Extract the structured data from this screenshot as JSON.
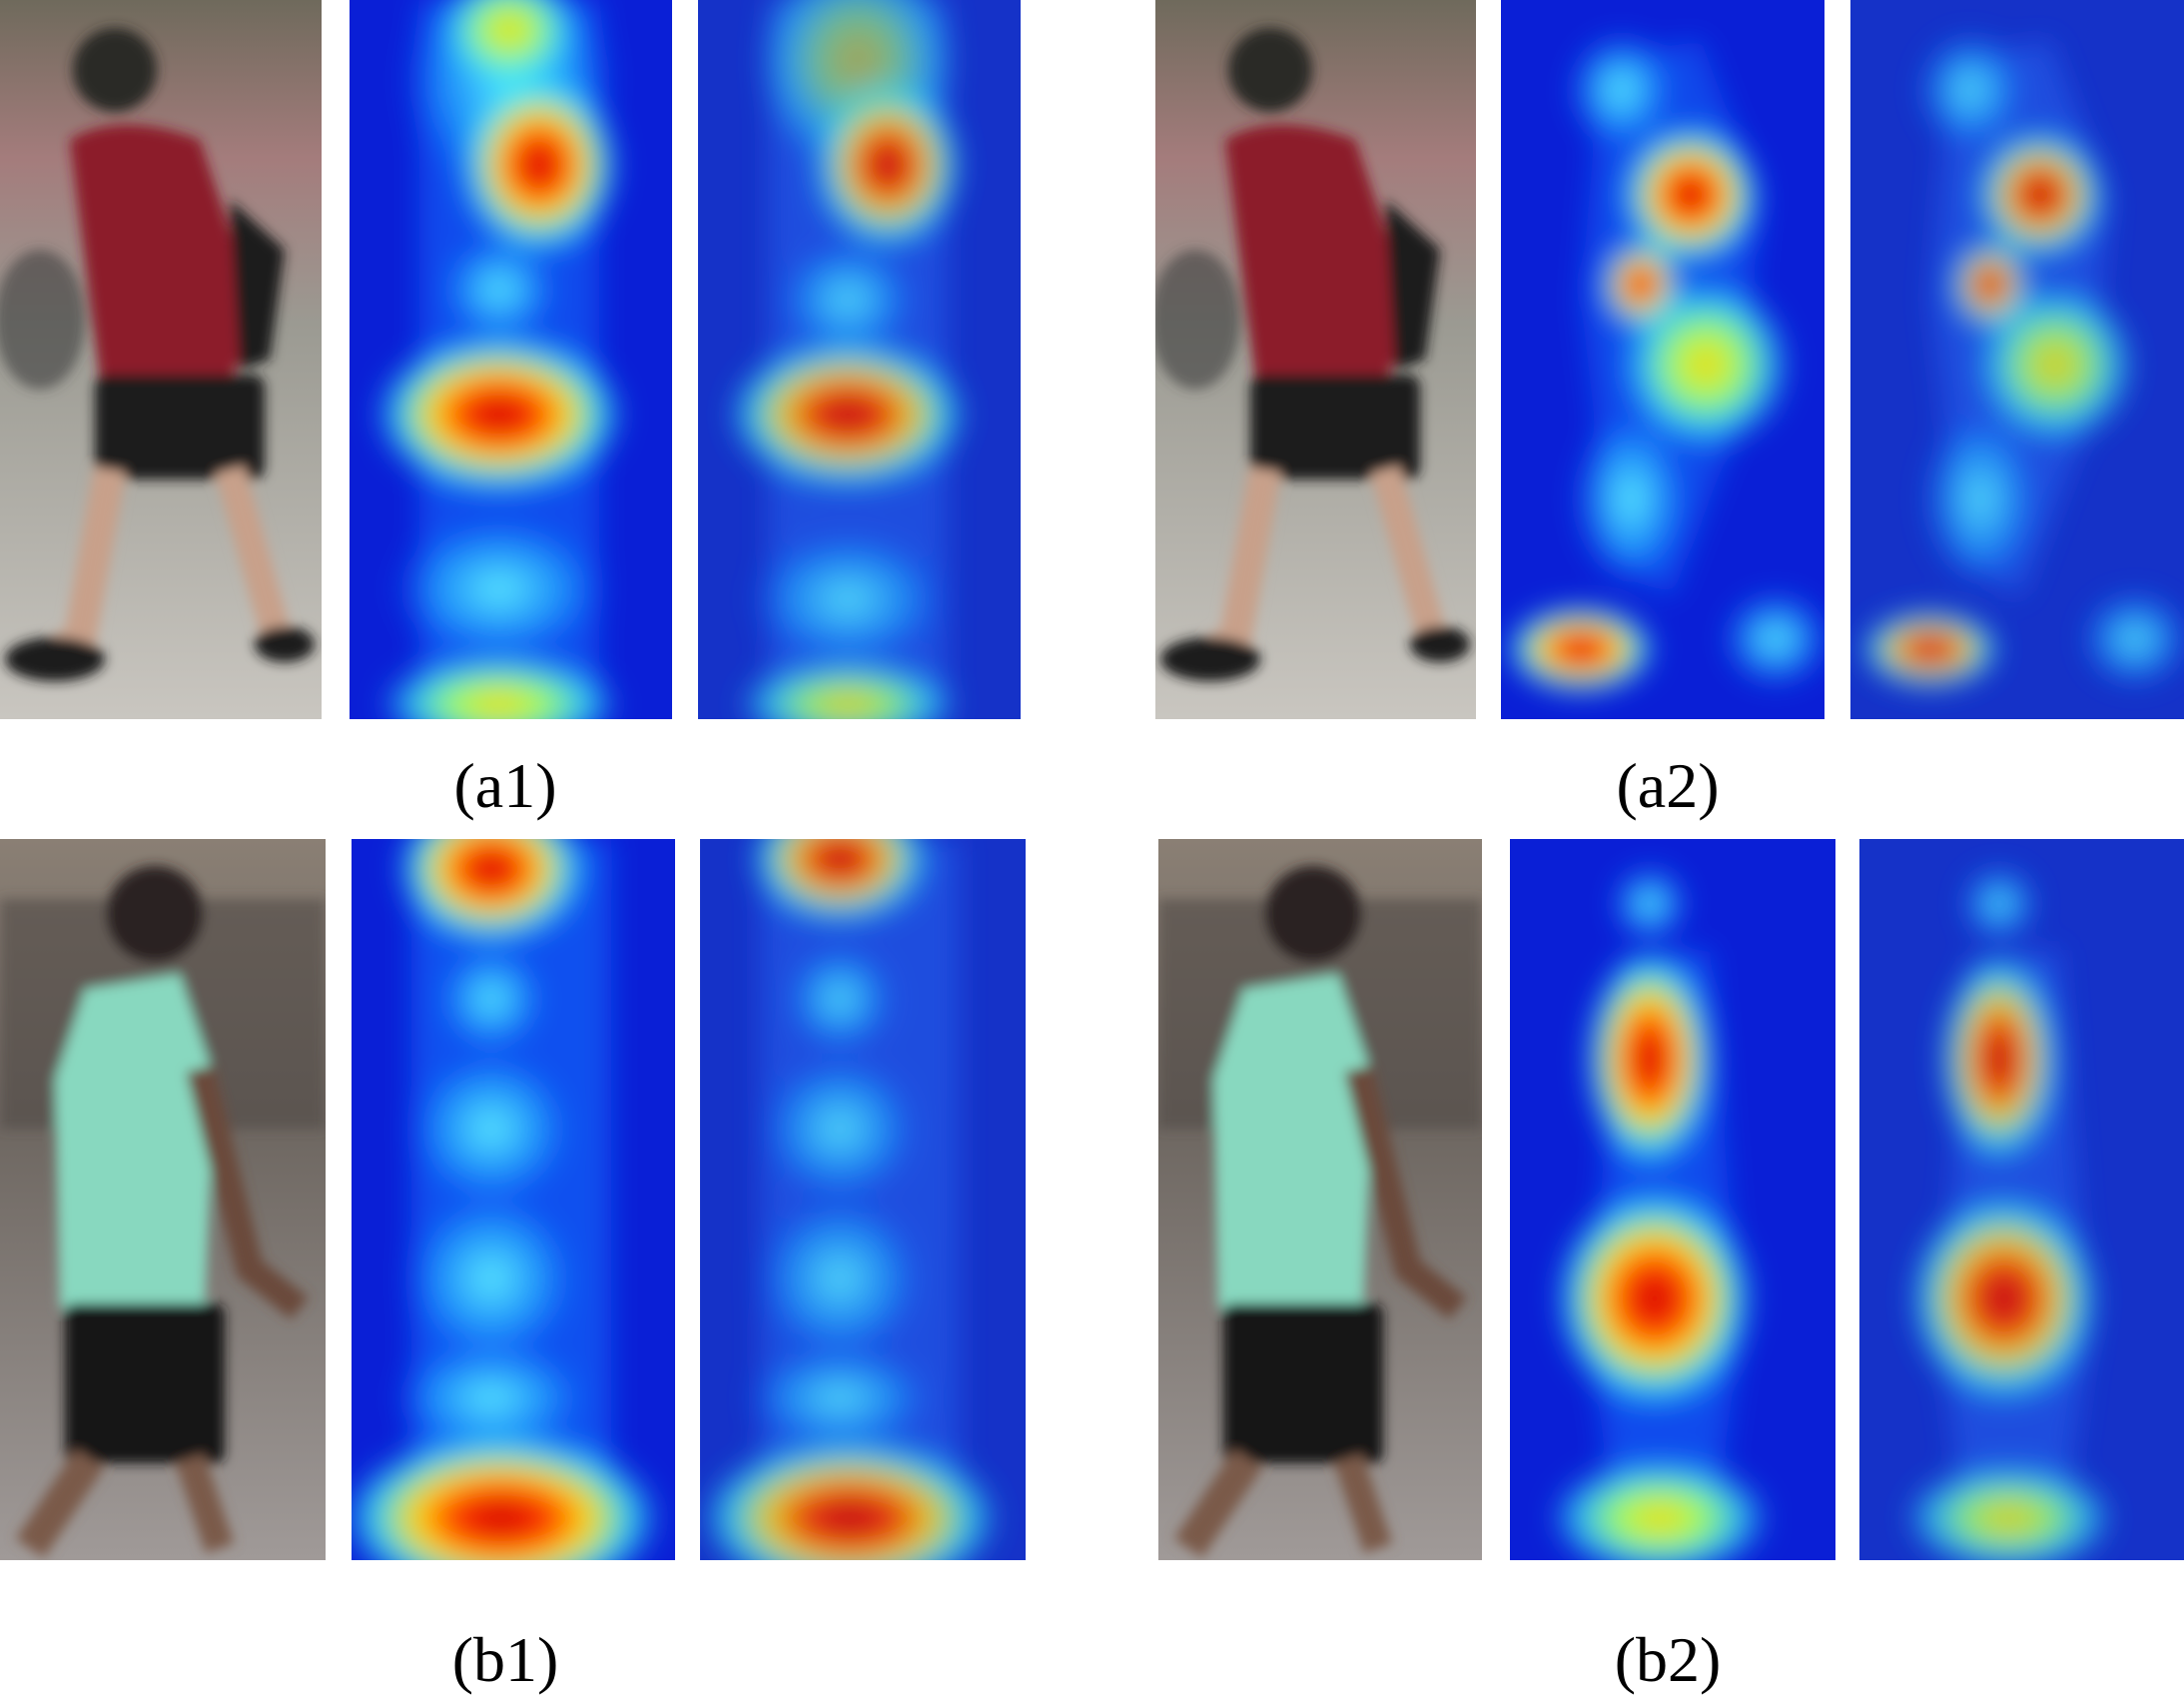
{
  "captions": {
    "a1": "(a1)",
    "a2": "(a2)",
    "b1": "(b1)",
    "b2": "(b2)"
  },
  "colors": {
    "background": "#ffffff",
    "heat_low": "#0a1fd6",
    "heat_mid": "#29e6ff",
    "heat_high": "#ffe800",
    "heat_peak": "#d40000"
  }
}
